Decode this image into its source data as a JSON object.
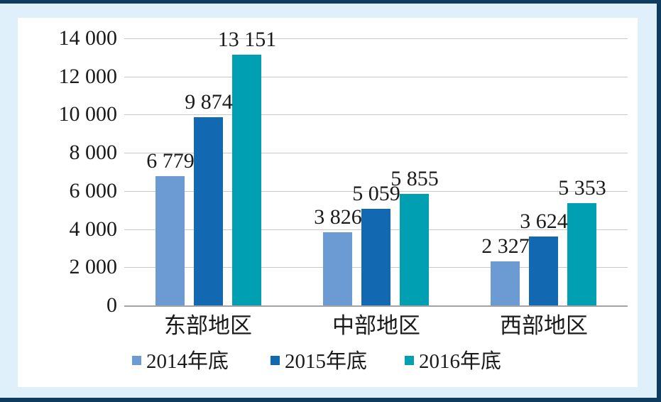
{
  "chart_data": {
    "type": "bar",
    "categories": [
      "东部地区",
      "中部地区",
      "西部地区"
    ],
    "series": [
      {
        "name": "2014年底",
        "color": "#6b9bd2",
        "values": [
          6779,
          3826,
          2327
        ],
        "labels": [
          "6 779",
          "3 826",
          "2 327"
        ]
      },
      {
        "name": "2015年底",
        "color": "#1268b1",
        "values": [
          9874,
          5059,
          3624
        ],
        "labels": [
          "9 874",
          "5 059",
          "3 624"
        ]
      },
      {
        "name": "2016年底",
        "color": "#00a0b2",
        "values": [
          13151,
          5855,
          5353
        ],
        "labels": [
          "13 151",
          "5 855",
          "5 353"
        ]
      }
    ],
    "ylim": [
      0,
      14000
    ],
    "ytick_step": 2000,
    "ytick_labels": [
      "0",
      "2 000",
      "4 000",
      "6 000",
      "8 000",
      "10 000",
      "12 000",
      "14 000"
    ],
    "grid": true,
    "legend_position": "bottom"
  },
  "colors": {
    "page_background": "#dff0fb",
    "panel_background": "#ffffff",
    "border_strip": "#0e3c61",
    "gridline": "#c8c8c8",
    "axis_line": "#a3a3a3",
    "text": "#1a1a1a"
  }
}
